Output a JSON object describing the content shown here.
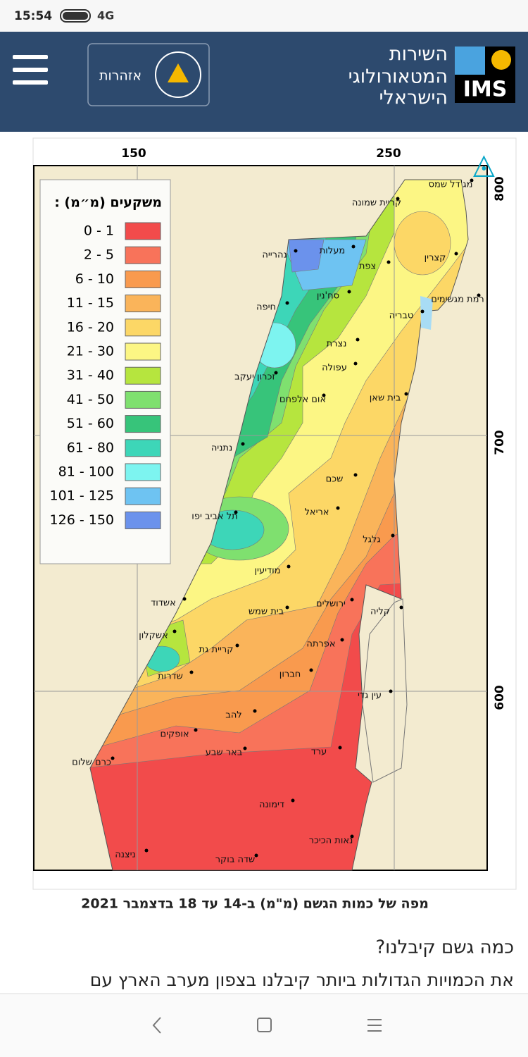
{
  "status_bar": {
    "time": "15:54",
    "network": "4G"
  },
  "header": {
    "org_name": [
      "השירות",
      "המטאורולוגי",
      "הישראלי"
    ],
    "logo": "IMS",
    "alerts": "אזהרות"
  },
  "map": {
    "x_ticks": [
      "150",
      "250"
    ],
    "y_ticks": [
      "800",
      "700",
      "600"
    ],
    "legend": {
      "title": "משקעים (מ״מ) :",
      "items": [
        {
          "label": "0 - 1",
          "color": "#f24b4b"
        },
        {
          "label": "2 - 5",
          "color": "#f8735a"
        },
        {
          "label": "6 - 10",
          "color": "#f99a4e"
        },
        {
          "label": "11 - 15",
          "color": "#fab45a"
        },
        {
          "label": "16 - 20",
          "color": "#fcd766"
        },
        {
          "label": "21 - 30",
          "color": "#fcf684"
        },
        {
          "label": "31 - 40",
          "color": "#b6e53e"
        },
        {
          "label": "41 - 50",
          "color": "#7fe06f"
        },
        {
          "label": "51 - 60",
          "color": "#37c47a"
        },
        {
          "label": "61 - 80",
          "color": "#3dd6b8"
        },
        {
          "label": "81 - 100",
          "color": "#7df4f0"
        },
        {
          "label": "101 - 125",
          "color": "#6ec3f2"
        },
        {
          "label": "126 - 150",
          "color": "#6b92ec"
        }
      ]
    },
    "places": [
      "מג'דל שמס",
      "קריית שמונה",
      "נהרייה",
      "מעלות",
      "צפת",
      "קצרין",
      "סח'נין",
      "רמת מגשימים",
      "חיפה",
      "טבריה",
      "נצרת",
      "עפולה",
      "זכרון יעקב",
      "בית שאן",
      "אום אלפחם",
      "נתניה",
      "שכם",
      "אריאל",
      "תל אביב יפו",
      "גלגל",
      "מודיעין",
      "ירושלים",
      "אשדוד",
      "בית שמש",
      "קליה",
      "אשקלון",
      "אפרתה",
      "קריית גת",
      "שדרות",
      "חברון",
      "עין גדי",
      "להב",
      "אופקים",
      "ערד",
      "כרם שלום",
      "באר שבע",
      "דימונה",
      "נאות הכיכר",
      "ניצנה",
      "שדה בוקר"
    ]
  },
  "caption": "מפה של כמות הגשם (מ\"מ) ב-14 עד 18 בדצמבר 2021",
  "article": {
    "heading": "כמה גשם קיבלנו?",
    "text": "את הכמויות הגדולות ביותר קיבלנו בצפון מערב הארץ עם"
  }
}
